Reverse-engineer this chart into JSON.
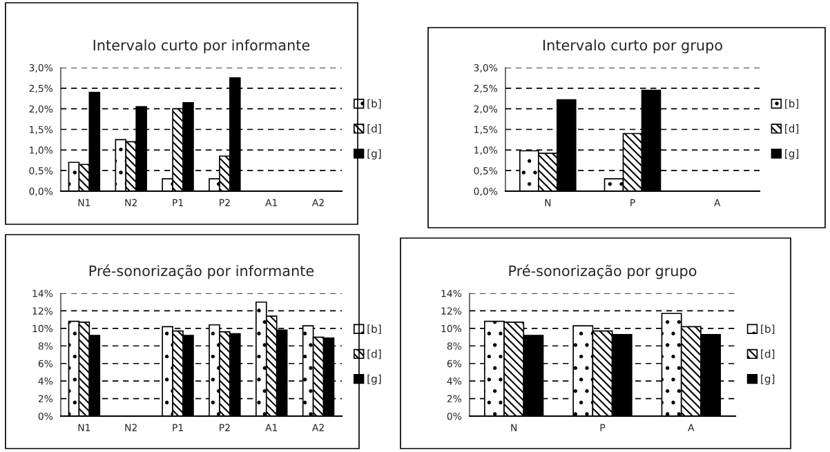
{
  "chart_data": [
    {
      "type": "bar",
      "title": "Intervalo curto por informante",
      "categories": [
        "N1",
        "N2",
        "P1",
        "P2",
        "A1",
        "A2"
      ],
      "series": [
        {
          "name": "[b]",
          "color": "#ffffff",
          "values": [
            0.7,
            1.25,
            0.3,
            0.3,
            null,
            null
          ]
        },
        {
          "name": "[d]",
          "color": "#ffffff",
          "values": [
            0.65,
            1.2,
            2.0,
            0.85,
            null,
            null
          ]
        },
        {
          "name": "[g]",
          "color": "#000000",
          "values": [
            2.4,
            2.05,
            2.15,
            2.75,
            null,
            null
          ]
        }
      ],
      "ylim": [
        0,
        3
      ],
      "yticks": [
        {
          "value": 0,
          "label": "0,0%"
        },
        {
          "value": 0.5,
          "label": "0,5%"
        },
        {
          "value": 1,
          "label": "1,0%"
        },
        {
          "value": 1.5,
          "label": "1,5%"
        },
        {
          "value": 2,
          "label": "2,0%"
        },
        {
          "value": 2.5,
          "label": "2,5%"
        },
        {
          "value": 3,
          "label": "3,0%"
        }
      ],
      "grid": "y",
      "legend": "right"
    },
    {
      "type": "bar",
      "title": "Intervalo curto por grupo",
      "categories": [
        "N",
        "P",
        "A"
      ],
      "series": [
        {
          "name": "[b]",
          "color": "#ffffff",
          "values": [
            0.98,
            0.3,
            null
          ]
        },
        {
          "name": "[d]",
          "color": "#ffffff",
          "values": [
            0.92,
            1.4,
            null
          ]
        },
        {
          "name": "[g]",
          "color": "#000000",
          "values": [
            2.22,
            2.45,
            null
          ]
        }
      ],
      "ylim": [
        0,
        3
      ],
      "yticks": [
        {
          "value": 0,
          "label": "0,0%"
        },
        {
          "value": 0.5,
          "label": "0,5%"
        },
        {
          "value": 1,
          "label": "1,0%"
        },
        {
          "value": 1.5,
          "label": "1,5%"
        },
        {
          "value": 2,
          "label": "2,0%"
        },
        {
          "value": 2.5,
          "label": "2,5%"
        },
        {
          "value": 3,
          "label": "3,0%"
        }
      ],
      "grid": "y",
      "legend": "right"
    },
    {
      "type": "bar",
      "title": "Pré-sonorização por informante",
      "categories": [
        "N1",
        "N2",
        "P1",
        "P2",
        "A1",
        "A2"
      ],
      "series": [
        {
          "name": "[b]",
          "color": "#ffffff",
          "values": [
            10.8,
            null,
            10.2,
            10.4,
            13.0,
            10.3
          ]
        },
        {
          "name": "[d]",
          "color": "#ffffff",
          "values": [
            10.7,
            null,
            9.7,
            9.6,
            11.4,
            9.0
          ]
        },
        {
          "name": "[g]",
          "color": "#000000",
          "values": [
            9.2,
            null,
            9.2,
            9.4,
            9.8,
            8.9
          ]
        }
      ],
      "ylim": [
        0,
        14
      ],
      "yticks": [
        {
          "value": 0,
          "label": "0%"
        },
        {
          "value": 2,
          "label": "2%"
        },
        {
          "value": 4,
          "label": "4%"
        },
        {
          "value": 6,
          "label": "6%"
        },
        {
          "value": 8,
          "label": "8%"
        },
        {
          "value": 10,
          "label": "10%"
        },
        {
          "value": 12,
          "label": "12%"
        },
        {
          "value": 14,
          "label": "14%"
        }
      ],
      "grid": "y",
      "legend": "right"
    },
    {
      "type": "bar",
      "title": "Pré-sonorização por grupo",
      "categories": [
        "N",
        "P",
        "A"
      ],
      "series": [
        {
          "name": "[b]",
          "color": "#ffffff",
          "values": [
            10.8,
            10.3,
            11.7
          ]
        },
        {
          "name": "[d]",
          "color": "#ffffff",
          "values": [
            10.7,
            9.7,
            10.2
          ]
        },
        {
          "name": "[g]",
          "color": "#000000",
          "values": [
            9.2,
            9.3,
            9.3
          ]
        }
      ],
      "ylim": [
        0,
        14
      ],
      "yticks": [
        {
          "value": 0,
          "label": "0%"
        },
        {
          "value": 2,
          "label": "2%"
        },
        {
          "value": 4,
          "label": "4%"
        },
        {
          "value": 6,
          "label": "6%"
        },
        {
          "value": 8,
          "label": "8%"
        },
        {
          "value": 10,
          "label": "10%"
        },
        {
          "value": 12,
          "label": "12%"
        },
        {
          "value": 14,
          "label": "14%"
        }
      ],
      "grid": "y",
      "legend": "right"
    }
  ]
}
